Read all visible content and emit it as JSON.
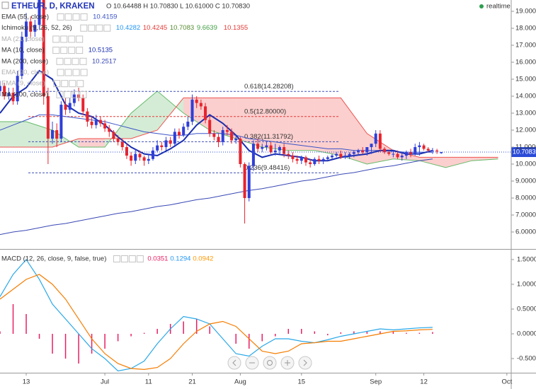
{
  "chart_data": [
    {
      "type": "candlestick",
      "title": "ETHEUR, D, KRAKEN",
      "ohlc_text": "O 10.64488 H 10.70830 L 10.61000 C 10.70830",
      "status": "realtime",
      "x": [
        -6,
        -5,
        -4,
        -3,
        -2,
        -1,
        0,
        1,
        2,
        3,
        4,
        5,
        6,
        7,
        8,
        9,
        10,
        11,
        12,
        13,
        14,
        15,
        16,
        17,
        18,
        19,
        20,
        21,
        22,
        23,
        24,
        25,
        26,
        27,
        28,
        29,
        30,
        31,
        32,
        33,
        34,
        35,
        36,
        37,
        38,
        39,
        40,
        41,
        42,
        43,
        44,
        45,
        46,
        47,
        48,
        49,
        50,
        51,
        52,
        53,
        54,
        55,
        56,
        57,
        58,
        59,
        60,
        61,
        62,
        63,
        64,
        65,
        66,
        67,
        68,
        69,
        70,
        71,
        72,
        73,
        74,
        75,
        76,
        77,
        78,
        79,
        80,
        81,
        82,
        83,
        84,
        85,
        86,
        87,
        88,
        89,
        90,
        91,
        92,
        93,
        94,
        95
      ],
      "open": [
        14.3,
        14.6,
        14.0,
        14.2,
        13.7,
        15.2,
        17.5,
        18.4,
        17.8,
        18.2,
        20.5,
        14.0,
        11.5,
        12.0,
        11.5,
        13.5,
        13.2,
        13.6,
        14.1,
        13.9,
        13.1,
        12.5,
        12.3,
        12.6,
        12.4,
        12.1,
        11.9,
        11.5,
        11.3,
        11.0,
        10.5,
        10.2,
        10.6,
        10.4,
        10.2,
        10.3,
        10.8,
        11.1,
        11.0,
        11.4,
        11.2,
        11.9,
        11.7,
        12.2,
        12.5,
        13.8,
        13.6,
        13.4,
        12.6,
        11.8,
        11.6,
        11.3,
        12.0,
        11.9,
        11.4,
        11.5,
        10.0,
        8.0,
        9.9,
        11.2,
        10.9,
        11.0,
        11.1,
        10.7,
        10.8,
        11.0,
        10.6,
        10.5,
        10.3,
        10.2,
        10.4,
        10.1,
        10.0,
        10.3,
        10.2,
        10.3,
        10.4,
        10.5,
        10.6,
        10.4,
        10.5,
        10.6,
        10.7,
        10.8,
        10.7,
        11.0,
        11.2,
        11.8,
        10.9,
        10.7,
        10.6,
        10.6,
        10.4,
        10.5,
        10.7,
        10.6,
        11.0,
        11.1,
        10.9,
        10.8,
        10.8,
        10.64488
      ],
      "high": [
        14.9,
        14.8,
        14.5,
        14.5,
        15.5,
        17.8,
        18.9,
        18.7,
        18.5,
        21.0,
        20.8,
        14.5,
        12.5,
        12.4,
        13.7,
        13.9,
        13.9,
        14.4,
        14.5,
        14.1,
        13.3,
        12.8,
        12.9,
        12.8,
        12.6,
        12.3,
        12.0,
        11.7,
        11.5,
        11.2,
        10.7,
        10.9,
        10.8,
        10.5,
        10.6,
        11.0,
        11.4,
        11.3,
        11.6,
        11.6,
        12.1,
        12.1,
        12.4,
        12.8,
        14.1,
        14.0,
        13.8,
        13.6,
        12.8,
        12.0,
        11.8,
        12.2,
        12.3,
        12.1,
        11.7,
        11.6,
        10.1,
        10.1,
        11.4,
        11.5,
        11.2,
        11.3,
        11.3,
        11.2,
        11.1,
        11.2,
        10.8,
        10.7,
        10.5,
        10.5,
        10.5,
        10.3,
        10.4,
        10.5,
        10.4,
        10.5,
        10.6,
        10.7,
        10.8,
        10.7,
        10.7,
        10.8,
        10.9,
        11.0,
        11.0,
        11.2,
        12.0,
        12.0,
        11.0,
        10.8,
        10.8,
        10.8,
        10.7,
        10.8,
        10.9,
        11.2,
        11.3,
        11.2,
        11.0,
        10.95,
        10.9,
        10.7083
      ],
      "low": [
        14.0,
        13.8,
        13.8,
        13.5,
        13.5,
        15.0,
        17.2,
        17.4,
        17.5,
        17.9,
        13.5,
        10.0,
        11.2,
        11.0,
        11.3,
        12.9,
        13.0,
        13.4,
        13.7,
        12.9,
        12.2,
        12.1,
        12.1,
        12.2,
        11.9,
        11.6,
        11.3,
        11.1,
        10.8,
        10.3,
        9.9,
        10.0,
        10.2,
        9.9,
        10.0,
        10.2,
        10.7,
        10.8,
        10.8,
        11.0,
        11.0,
        11.5,
        11.6,
        12.0,
        12.3,
        13.3,
        13.2,
        12.4,
        11.6,
        11.4,
        11.0,
        11.1,
        11.7,
        11.2,
        11.2,
        9.8,
        6.5,
        7.8,
        9.6,
        10.7,
        10.7,
        10.8,
        10.6,
        10.5,
        10.6,
        10.4,
        10.3,
        10.1,
        10.0,
        10.0,
        9.9,
        9.8,
        9.9,
        10.0,
        10.0,
        10.2,
        10.3,
        10.4,
        10.3,
        10.3,
        10.3,
        10.4,
        10.5,
        10.6,
        10.5,
        10.6,
        11.0,
        10.7,
        10.6,
        10.5,
        10.4,
        10.3,
        10.2,
        10.3,
        10.4,
        10.5,
        10.5,
        10.8,
        10.7,
        10.6,
        10.6,
        10.61
      ],
      "close": [
        14.6,
        14.0,
        14.2,
        13.7,
        15.2,
        17.5,
        18.4,
        17.8,
        18.2,
        20.5,
        14.0,
        11.5,
        12.0,
        11.5,
        13.5,
        13.2,
        13.6,
        14.1,
        13.9,
        13.1,
        12.5,
        12.3,
        12.6,
        12.4,
        12.1,
        11.9,
        11.5,
        11.3,
        11.0,
        10.5,
        10.2,
        10.6,
        10.4,
        10.2,
        10.3,
        10.8,
        11.1,
        11.0,
        11.4,
        11.2,
        11.9,
        11.7,
        12.2,
        12.5,
        13.8,
        13.6,
        13.4,
        12.6,
        11.8,
        11.6,
        11.3,
        12.0,
        11.9,
        11.4,
        11.5,
        10.0,
        8.0,
        9.9,
        11.2,
        10.9,
        11.0,
        11.1,
        10.7,
        10.8,
        11.0,
        10.6,
        10.5,
        10.3,
        10.2,
        10.4,
        10.1,
        10.0,
        10.3,
        10.2,
        10.3,
        10.4,
        10.5,
        10.6,
        10.4,
        10.5,
        10.6,
        10.7,
        10.8,
        10.7,
        11.0,
        11.2,
        11.8,
        10.9,
        10.7,
        10.6,
        10.6,
        10.4,
        10.5,
        10.7,
        10.6,
        11.0,
        11.1,
        10.9,
        10.8,
        10.8,
        10.75,
        10.7083
      ],
      "up_color": "#2f3fd8",
      "down_color": "#e8232d",
      "xlim": [
        -6,
        111
      ],
      "ylim": [
        5,
        19.667
      ],
      "yticks": [
        {
          "value": 6,
          "label": "6.00000"
        },
        {
          "value": 7,
          "label": "7.00000"
        },
        {
          "value": 8,
          "label": "8.00000"
        },
        {
          "value": 9,
          "label": "9.00000"
        },
        {
          "value": 10,
          "label": "10.00000"
        },
        {
          "value": 11,
          "label": "11.00000"
        },
        {
          "value": 12,
          "label": "12.00000"
        },
        {
          "value": 13,
          "label": "13.00000"
        },
        {
          "value": 14,
          "label": "14.00000"
        },
        {
          "value": 15,
          "label": "15.00000"
        },
        {
          "value": 16,
          "label": "16.00000"
        },
        {
          "value": 17,
          "label": "17.00000"
        },
        {
          "value": 18,
          "label": "18.00000"
        },
        {
          "value": 19,
          "label": "19.00000"
        }
      ],
      "indicator_x": [
        -6,
        -3,
        0,
        3,
        6,
        9,
        12,
        15,
        18,
        21,
        24,
        27,
        30,
        33,
        36,
        39,
        42,
        45,
        48,
        51,
        54,
        57,
        60,
        63,
        66,
        69,
        72,
        75,
        78,
        81,
        84,
        87,
        90,
        93
      ],
      "indicators": [
        {
          "name": "EMA (55, close)",
          "readouts": [
            10.4159
          ],
          "readout_colors": [
            "#3b54c8"
          ],
          "color": "#3b54c8",
          "width": 1,
          "values": [
            12.0,
            12.3,
            12.6,
            12.9,
            12.9,
            12.8,
            12.7,
            12.6,
            12.5,
            12.3,
            12.1,
            11.9,
            11.8,
            11.7,
            11.7,
            11.8,
            11.8,
            11.8,
            11.7,
            11.5,
            11.4,
            11.3,
            11.2,
            11.1,
            11.0,
            10.9,
            10.9,
            10.8,
            10.8,
            10.8,
            10.75,
            10.7,
            10.7,
            10.7
          ]
        },
        {
          "name": "Ichimoku (9, 26, 52, 26)",
          "readouts": [
            10.4282,
            10.4245,
            10.7083,
            9.6639,
            10.1355
          ],
          "readout_colors": [
            "#2196f3",
            "#e53935",
            "#558b2f",
            "#43a047",
            "#e53935"
          ]
        },
        {
          "name": "MA (21, close)",
          "hidden": true
        },
        {
          "name": "MA (10, close)",
          "readouts": [
            10.5135
          ],
          "readout_colors": [
            "#1a2fb0"
          ],
          "color": "#1a2fb0",
          "width": 2,
          "values": [
            13.0,
            14.0,
            14.5,
            15.5,
            15.0,
            13.5,
            13.0,
            12.8,
            12.3,
            11.6,
            11.0,
            10.6,
            10.5,
            10.9,
            11.4,
            12.3,
            12.9,
            12.4,
            11.7,
            10.8,
            10.4,
            10.6,
            10.5,
            10.4,
            10.2,
            10.2,
            10.4,
            10.5,
            10.6,
            10.8,
            10.8,
            10.6,
            10.6,
            10.8
          ]
        },
        {
          "name": "MA (200, close)",
          "readouts": [
            10.2517
          ],
          "readout_colors": [
            "#3948b5"
          ],
          "color": "#3948b5",
          "width": 1,
          "values": [
            5.85,
            6.0,
            6.1,
            6.25,
            6.4,
            6.5,
            6.65,
            6.8,
            6.95,
            7.1,
            7.2,
            7.35,
            7.5,
            7.6,
            7.75,
            7.9,
            8.0,
            8.15,
            8.3,
            8.45,
            8.55,
            8.7,
            8.85,
            9.0,
            9.1,
            9.25,
            9.4,
            9.5,
            9.65,
            9.8,
            9.9,
            10.05,
            10.2,
            10.3
          ]
        },
        {
          "name": "EMA (90, close)",
          "hidden": true
        },
        {
          "name": "EMA (9, close)",
          "hidden": true
        },
        {
          "name": "MA (100, close)"
        }
      ],
      "cloud": {
        "x": [
          -6,
          0,
          6,
          12,
          18,
          24,
          30,
          36,
          42,
          48,
          54,
          60,
          66,
          72,
          78,
          84,
          90,
          96,
          102,
          108
        ],
        "span_a": [
          12.5,
          12.5,
          12.0,
          11.0,
          11.0,
          13.0,
          14.3,
          13.0,
          12.0,
          11.5,
          11.0,
          10.8,
          10.8,
          10.5,
          10.0,
          10.3,
          10.2,
          9.8,
          10.2,
          10.3
        ],
        "span_b": [
          11.0,
          11.0,
          11.0,
          11.5,
          11.5,
          11.5,
          12.0,
          13.9,
          13.9,
          13.9,
          13.9,
          13.9,
          13.9,
          13.9,
          11.8,
          10.8,
          10.4,
          10.4,
          10.4,
          10.4
        ],
        "up_color": "#66bb6a",
        "down_color": "#ef5350"
      },
      "fib_levels": [
        {
          "value": 14.28208,
          "label": "0.618(14.28208)",
          "color": "#3f51b5"
        },
        {
          "value": 12.8,
          "label": "0.5(12.80000)",
          "color": "#e53935"
        },
        {
          "value": 11.31792,
          "label": "0.382(11.31792)",
          "color": "#3f51b5"
        },
        {
          "value": 9.48416,
          "label": "0.236(9.48416)",
          "color": "#3f51b5"
        }
      ],
      "last_price": {
        "value": 10.7083,
        "label": "10.70830",
        "color": "#2b4bd8"
      }
    },
    {
      "type": "macd",
      "title": "MACD (12, 26, close, 9, false, true)",
      "readouts": [
        0.0351,
        0.1294,
        0.0942
      ],
      "readout_colors": [
        "#e91e63",
        "#2196f3",
        "#ff9800"
      ],
      "x": [
        -6,
        -3,
        0,
        3,
        6,
        9,
        12,
        15,
        18,
        21,
        24,
        27,
        30,
        33,
        36,
        39,
        42,
        45,
        48,
        51,
        54,
        57,
        60,
        63,
        66,
        69,
        72,
        75,
        78,
        81,
        84,
        87,
        90,
        93
      ],
      "series": [
        {
          "style": "histogram",
          "color": "#e91e63",
          "values": [
            0.05,
            0.6,
            0.4,
            -0.1,
            -0.4,
            -0.5,
            -0.6,
            -0.4,
            -0.3,
            -0.15,
            -0.05,
            0.02,
            0.1,
            0.2,
            0.25,
            0.3,
            0.15,
            0.0,
            -0.2,
            -0.3,
            -0.15,
            -0.05,
            0.1,
            0.1,
            0.05,
            -0.03,
            0.03,
            0.05,
            0.05,
            0.05,
            0.05,
            0.02,
            0.02,
            0.035
          ]
        },
        {
          "style": "line",
          "color": "#29a8e8",
          "values": [
            0.75,
            1.2,
            1.5,
            1.1,
            0.6,
            0.3,
            0.0,
            -0.3,
            -0.5,
            -0.75,
            -0.7,
            -0.55,
            -0.2,
            0.1,
            0.35,
            0.3,
            0.2,
            -0.1,
            -0.4,
            -0.45,
            -0.25,
            -0.1,
            -0.1,
            -0.15,
            -0.18,
            -0.12,
            -0.05,
            0.0,
            0.05,
            0.1,
            0.08,
            0.1,
            0.12,
            0.13
          ]
        },
        {
          "style": "line",
          "color": "#f57c00",
          "values": [
            0.7,
            0.9,
            1.1,
            1.2,
            1.0,
            0.7,
            0.3,
            -0.1,
            -0.4,
            -0.6,
            -0.7,
            -0.72,
            -0.68,
            -0.5,
            -0.2,
            0.05,
            0.2,
            0.25,
            0.15,
            -0.1,
            -0.35,
            -0.4,
            -0.35,
            -0.2,
            -0.18,
            -0.15,
            -0.15,
            -0.1,
            -0.05,
            0.0,
            0.05,
            0.06,
            0.08,
            0.09
          ]
        }
      ],
      "xlim": [
        -6,
        111
      ],
      "ylim": [
        -0.786,
        1.714
      ],
      "yticks": [
        {
          "value": -0.5,
          "label": "-0.5000"
        },
        {
          "value": 0,
          "label": "0.0000"
        },
        {
          "value": 0.5,
          "label": "0.5000"
        },
        {
          "value": 1,
          "label": "1.0000"
        },
        {
          "value": 1.5,
          "label": "1.5000"
        }
      ],
      "xticks": [
        {
          "value": 0,
          "label": "13"
        },
        {
          "value": 18,
          "label": "Jul"
        },
        {
          "value": 28,
          "label": "11"
        },
        {
          "value": 38,
          "label": "21"
        },
        {
          "value": 49,
          "label": "Aug"
        },
        {
          "value": 63,
          "label": "15"
        },
        {
          "value": 80,
          "label": "Sep"
        },
        {
          "value": 91,
          "label": "12"
        },
        {
          "value": 110,
          "label": "Oct"
        }
      ]
    }
  ]
}
